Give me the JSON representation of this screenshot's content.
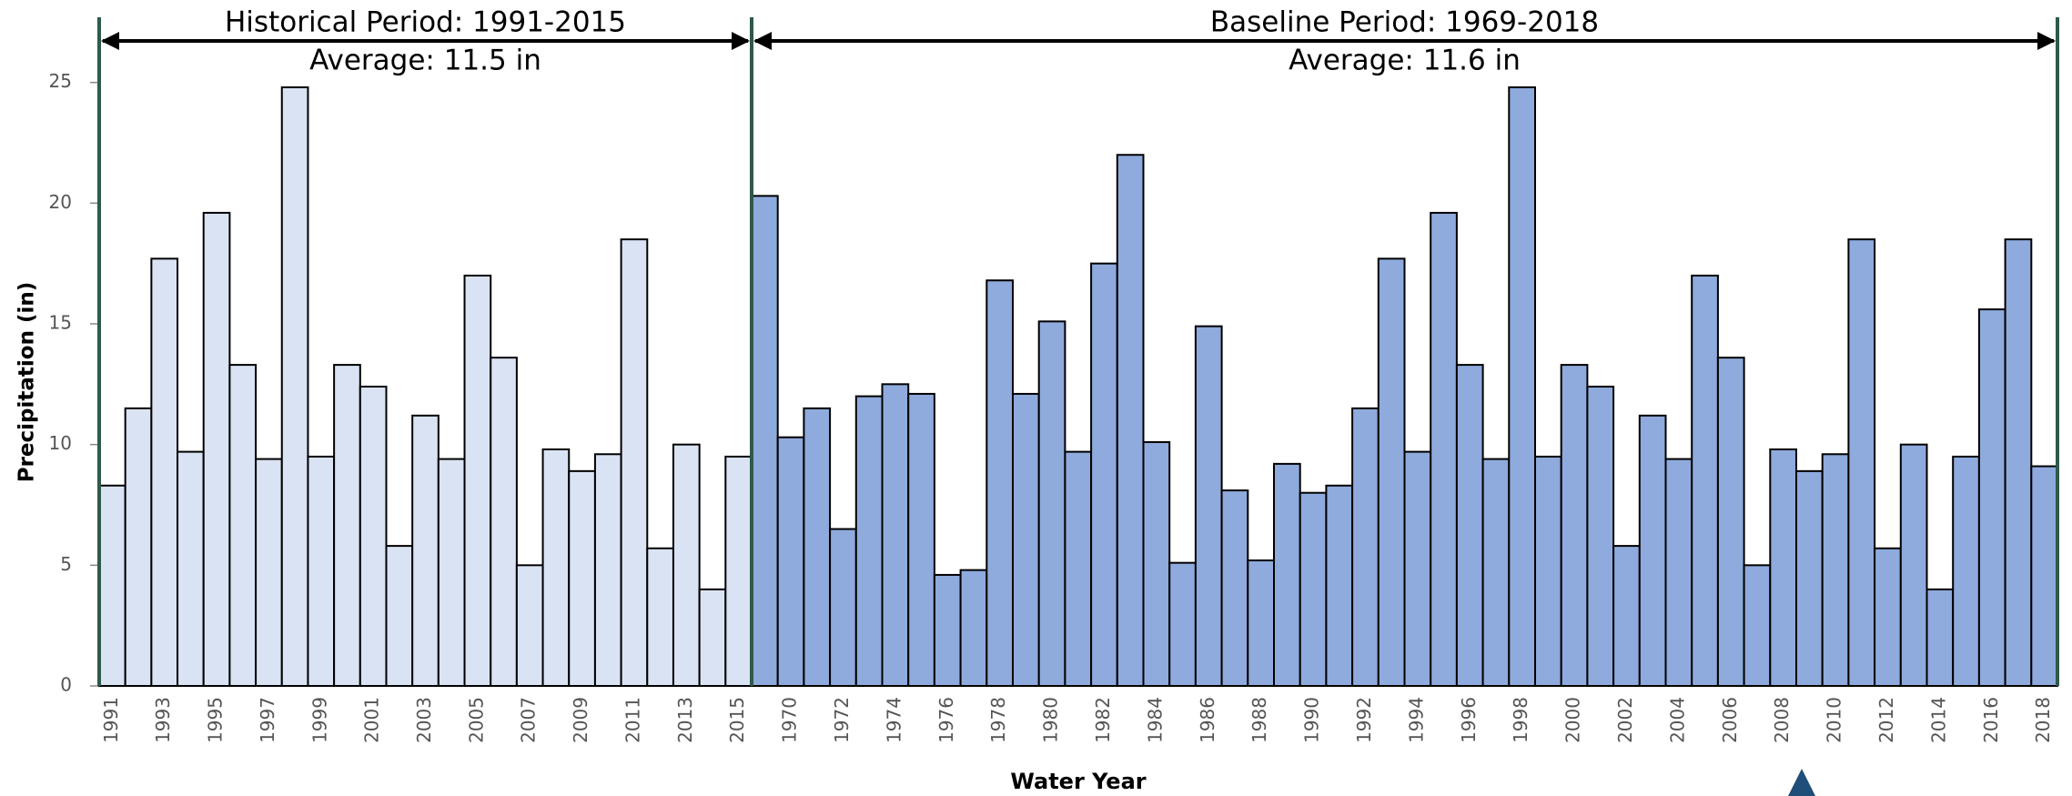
{
  "chart_data": {
    "type": "bar",
    "y_label": "Precipitation (in)",
    "x_label": "Water Year",
    "ylim": [
      0,
      27.7
    ],
    "yticks": [
      0,
      5,
      10,
      15,
      20,
      25
    ],
    "periods": [
      {
        "label": "Historical Period: 1991-2015",
        "average_label": "Average: 11.5 in",
        "color": "#dae3f3",
        "categories": [
          "1991",
          null,
          "1993",
          null,
          "1995",
          null,
          "1997",
          null,
          "1999",
          null,
          "2001",
          null,
          "2003",
          null,
          "2005",
          null,
          "2007",
          null,
          "2009",
          null,
          "2011",
          null,
          "2013",
          null,
          "2015"
        ],
        "values": [
          8.3,
          11.5,
          17.7,
          9.7,
          19.6,
          13.3,
          9.4,
          24.8,
          9.5,
          13.3,
          12.4,
          5.8,
          11.2,
          9.4,
          17.0,
          13.6,
          5.0,
          9.8,
          8.9,
          9.6,
          18.5,
          5.7,
          10.0,
          4.0,
          9.5
        ]
      },
      {
        "label": "Baseline Period: 1969-2018",
        "average_label": "Average: 11.6 in",
        "color": "#8faadc",
        "categories": [
          null,
          "1970",
          null,
          "1972",
          null,
          "1974",
          null,
          "1976",
          null,
          "1978",
          null,
          "1980",
          null,
          "1982",
          null,
          "1984",
          null,
          "1986",
          null,
          "1988",
          null,
          "1990",
          null,
          "1992",
          null,
          "1994",
          null,
          "1996",
          null,
          "1998",
          null,
          "2000",
          null,
          "2002",
          null,
          "2004",
          null,
          "2006",
          null,
          "2008",
          null,
          "2010",
          null,
          "2012",
          null,
          "2014",
          null,
          "2016",
          null,
          "2018"
        ],
        "values": [
          20.3,
          10.3,
          11.5,
          6.5,
          12.0,
          12.5,
          12.1,
          4.6,
          4.8,
          16.8,
          12.1,
          15.1,
          9.7,
          17.5,
          22.0,
          10.1,
          5.1,
          14.9,
          8.1,
          5.2,
          9.2,
          8.0,
          8.3,
          11.5,
          17.7,
          9.7,
          19.6,
          13.3,
          9.4,
          24.8,
          9.5,
          13.3,
          12.4,
          5.8,
          11.2,
          9.4,
          17.0,
          13.6,
          5.0,
          9.8,
          8.9,
          9.6,
          18.5,
          5.7,
          10.0,
          4.0,
          9.5,
          15.6,
          18.5,
          9.1
        ]
      }
    ]
  }
}
